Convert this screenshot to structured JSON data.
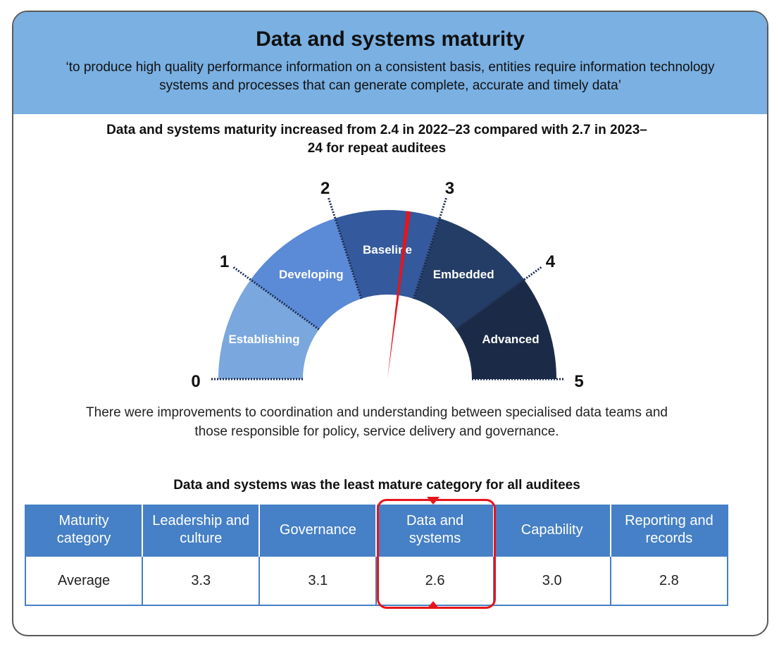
{
  "header": {
    "title": "Data and systems maturity",
    "quote": "‘to produce high quality performance information on a consistent basis, entities require information technology systems and processes that can generate complete, accurate and timely data’"
  },
  "chart_data": [
    {
      "type": "gauge",
      "title": "Data and systems maturity increased from 2.4 in 2022–23 compared with 2.7 in 2023–24 for repeat auditees",
      "range": [
        0,
        5
      ],
      "tick_labels": [
        "0",
        "1",
        "2",
        "3",
        "4",
        "5"
      ],
      "segments": [
        {
          "label": "Establishing",
          "from": 0,
          "to": 1,
          "color": "#7aa7dd"
        },
        {
          "label": "Developing",
          "from": 1,
          "to": 2,
          "color": "#5b8ad6"
        },
        {
          "label": "Baseline",
          "from": 2,
          "to": 3,
          "color": "#34599c"
        },
        {
          "label": "Embedded",
          "from": 3,
          "to": 4,
          "color": "#233d66"
        },
        {
          "label": "Advanced",
          "from": 4,
          "to": 5,
          "color": "#1b2b47"
        }
      ],
      "needle_value": 2.7,
      "needle_color": "#e8141c"
    },
    {
      "type": "table",
      "title": "Data and systems was the least mature category for all auditees",
      "columns": [
        "Maturity category",
        "Leadership and culture",
        "Governance",
        "Data and systems",
        "Capability",
        "Reporting and records"
      ],
      "rows": [
        [
          "Average",
          "3.3",
          "3.1",
          "2.6",
          "3.0",
          "2.8"
        ]
      ],
      "highlighted_column": "Data and systems",
      "header_color": "#4680c6",
      "highlight_color": "#e8141c"
    }
  ],
  "body_text": "There were improvements to coordination and understanding between specialised data teams and those responsible for policy, service delivery and governance."
}
